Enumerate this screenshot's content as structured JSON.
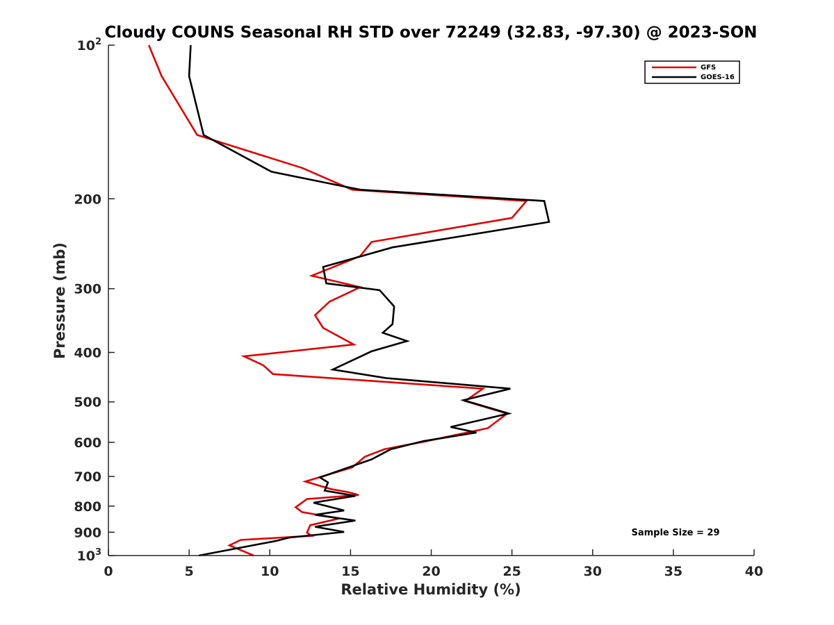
{
  "chart_data": {
    "type": "line",
    "title": "Cloudy COUNS Seasonal RH STD over 72249 (32.83, -97.30) @ 2023-SON",
    "xlabel": "Relative Humidity (%)",
    "ylabel": "Pressure (mb)",
    "xlim": [
      0,
      40
    ],
    "ylim": [
      100,
      1000
    ],
    "yscale": "log",
    "y_reversed": true,
    "xticks": [
      0,
      5,
      10,
      15,
      20,
      25,
      30,
      35,
      40
    ],
    "yticks": [
      {
        "value": 100,
        "label": "10",
        "sup": "2"
      },
      {
        "value": 200,
        "label": "200",
        "sup": ""
      },
      {
        "value": 300,
        "label": "300",
        "sup": ""
      },
      {
        "value": 400,
        "label": "400",
        "sup": ""
      },
      {
        "value": 500,
        "label": "500",
        "sup": ""
      },
      {
        "value": 600,
        "label": "600",
        "sup": ""
      },
      {
        "value": 700,
        "label": "700",
        "sup": ""
      },
      {
        "value": 800,
        "label": "800",
        "sup": ""
      },
      {
        "value": 900,
        "label": "900",
        "sup": ""
      },
      {
        "value": 1000,
        "label": "10",
        "sup": "3"
      }
    ],
    "legend_position": "top-right",
    "grid": false,
    "annotation": "Sample Size = 29",
    "series": [
      {
        "name": "GFS",
        "color": "#e00000",
        "points": [
          [
            2.5,
            100
          ],
          [
            3.3,
            115
          ],
          [
            5.5,
            150
          ],
          [
            12.0,
            174
          ],
          [
            15.1,
            192
          ],
          [
            25.9,
            202
          ],
          [
            25.0,
            218
          ],
          [
            16.3,
            243
          ],
          [
            15.6,
            259
          ],
          [
            12.6,
            283
          ],
          [
            15.6,
            298
          ],
          [
            13.7,
            318
          ],
          [
            12.8,
            338
          ],
          [
            13.3,
            358
          ],
          [
            15.2,
            386
          ],
          [
            8.4,
            407
          ],
          [
            9.6,
            424
          ],
          [
            10.2,
            441
          ],
          [
            23.2,
            471
          ],
          [
            22.1,
            498
          ],
          [
            24.7,
            527
          ],
          [
            23.5,
            563
          ],
          [
            19.7,
            597
          ],
          [
            17.1,
            619
          ],
          [
            15.9,
            640
          ],
          [
            15.1,
            672
          ],
          [
            12.2,
            716
          ],
          [
            13.8,
            741
          ],
          [
            14.9,
            752
          ],
          [
            15.5,
            761
          ],
          [
            12.3,
            775
          ],
          [
            11.6,
            804
          ],
          [
            12.0,
            822
          ],
          [
            14.3,
            846
          ],
          [
            12.5,
            872
          ],
          [
            12.3,
            902
          ],
          [
            12.6,
            915
          ],
          [
            8.2,
            932
          ],
          [
            7.5,
            955
          ],
          [
            9.0,
            1000
          ]
        ]
      },
      {
        "name": "GOES-16",
        "color": "#000000",
        "points": [
          [
            5.1,
            100
          ],
          [
            5.0,
            115
          ],
          [
            5.9,
            150
          ],
          [
            10.1,
            177
          ],
          [
            15.6,
            192
          ],
          [
            27.0,
            202
          ],
          [
            27.3,
            222
          ],
          [
            17.6,
            249
          ],
          [
            13.3,
            272
          ],
          [
            13.5,
            293
          ],
          [
            16.8,
            302
          ],
          [
            17.7,
            325
          ],
          [
            17.6,
            352
          ],
          [
            17.0,
            366
          ],
          [
            18.5,
            380
          ],
          [
            16.3,
            398
          ],
          [
            13.9,
            432
          ],
          [
            17.2,
            449
          ],
          [
            24.9,
            471
          ],
          [
            22.0,
            496
          ],
          [
            24.8,
            527
          ],
          [
            21.2,
            560
          ],
          [
            22.8,
            574
          ],
          [
            19.5,
            597
          ],
          [
            17.5,
            619
          ],
          [
            16.3,
            648
          ],
          [
            13.1,
            703
          ],
          [
            13.6,
            719
          ],
          [
            13.4,
            746
          ],
          [
            15.3,
            764
          ],
          [
            12.7,
            788
          ],
          [
            14.6,
            816
          ],
          [
            12.8,
            832
          ],
          [
            15.3,
            854
          ],
          [
            12.8,
            878
          ],
          [
            14.6,
            899
          ],
          [
            11.2,
            922
          ],
          [
            10.4,
            936
          ],
          [
            5.6,
            1000
          ]
        ]
      }
    ]
  }
}
